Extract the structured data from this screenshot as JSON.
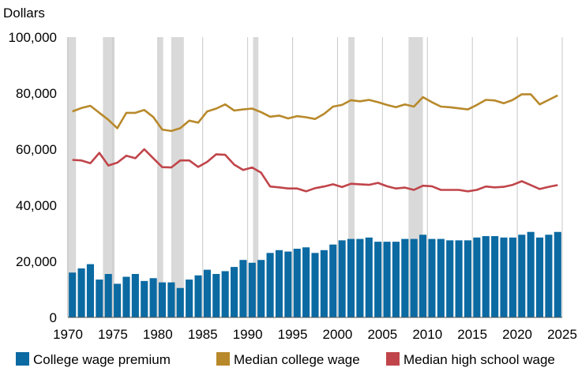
{
  "chart_data": {
    "type": "bar",
    "title": "",
    "unit_label": "Dollars",
    "xlabel": "",
    "ylabel": "",
    "xlim": [
      1970,
      2025
    ],
    "ylim": [
      0,
      100000
    ],
    "x_ticks": [
      1970,
      1975,
      1980,
      1985,
      1990,
      1995,
      2000,
      2005,
      2010,
      2015,
      2020,
      2025
    ],
    "y_ticks": [
      {
        "value": 0,
        "label": "0"
      },
      {
        "value": 20000,
        "label": "20,000"
      },
      {
        "value": 40000,
        "label": "40,000"
      },
      {
        "value": 60000,
        "label": "60,000"
      },
      {
        "value": 80000,
        "label": "80,000"
      },
      {
        "value": 100000,
        "label": "100,000"
      }
    ],
    "grid": {
      "vertical": true,
      "horizontal": false
    },
    "legend_position": "bottom",
    "recessions": [
      [
        1969.9,
        1970.9
      ],
      [
        1973.9,
        1975.2
      ],
      [
        1980.0,
        1980.6
      ],
      [
        1981.5,
        1982.9
      ],
      [
        1990.6,
        1991.2
      ],
      [
        2001.2,
        2001.9
      ],
      [
        2007.9,
        2009.5
      ]
    ],
    "x": [
      1970,
      1971,
      1972,
      1973,
      1974,
      1975,
      1976,
      1977,
      1978,
      1979,
      1980,
      1981,
      1982,
      1983,
      1984,
      1985,
      1986,
      1987,
      1988,
      1989,
      1990,
      1991,
      1992,
      1993,
      1994,
      1995,
      1996,
      1997,
      1998,
      1999,
      2000,
      2001,
      2002,
      2003,
      2004,
      2005,
      2006,
      2007,
      2008,
      2009,
      2010,
      2011,
      2012,
      2013,
      2014,
      2015,
      2016,
      2017,
      2018,
      2019,
      2020,
      2021,
      2022,
      2023,
      2024
    ],
    "series": [
      {
        "name": "College wage premium",
        "type": "bar",
        "color": "#0b6aa2",
        "values": [
          16000,
          17500,
          19000,
          13500,
          15500,
          12000,
          14500,
          15500,
          13000,
          14000,
          12500,
          12500,
          10500,
          13500,
          15000,
          17000,
          15500,
          16500,
          18000,
          20500,
          19500,
          20500,
          23000,
          24000,
          23500,
          24500,
          25000,
          23000,
          24000,
          26000,
          27500,
          28000,
          28000,
          28500,
          27000,
          27000,
          27000,
          28000,
          28000,
          29500,
          28000,
          28000,
          27500,
          27500,
          27500,
          28500,
          29000,
          29000,
          28500,
          28500,
          29500,
          30500,
          28500,
          29500,
          30500
        ]
      },
      {
        "name": "Median college wage",
        "type": "line",
        "color": "#b8892b",
        "values": [
          73500,
          74700,
          75500,
          73000,
          70500,
          67500,
          73000,
          73000,
          74000,
          71500,
          67000,
          66500,
          67500,
          70200,
          69500,
          73500,
          74500,
          76000,
          73800,
          74200,
          74500,
          73200,
          71600,
          72000,
          71000,
          71800,
          71400,
          70800,
          72600,
          75200,
          75800,
          77500,
          77100,
          77600,
          76800,
          75800,
          75000,
          76000,
          75200,
          78600,
          76800,
          75200,
          75000,
          74600,
          74200,
          75800,
          77600,
          77400,
          76400,
          77600,
          79600,
          79600,
          76000,
          77600,
          79200
        ]
      },
      {
        "name": "Median high school wage",
        "type": "line",
        "color": "#c0454a",
        "values": [
          56200,
          56000,
          55000,
          58700,
          54200,
          55200,
          57700,
          56800,
          60000,
          56800,
          53600,
          53500,
          56000,
          56000,
          53700,
          55500,
          58200,
          58000,
          54500,
          52600,
          53500,
          51600,
          46700,
          46400,
          46000,
          46000,
          45000,
          46100,
          46700,
          47500,
          46500,
          47700,
          47500,
          47300,
          48000,
          46800,
          46000,
          46300,
          45500,
          47000,
          46800,
          45500,
          45500,
          45500,
          45000,
          45500,
          46700,
          46400,
          46600,
          47300,
          48600,
          47200,
          45800,
          46600,
          47200
        ]
      }
    ]
  }
}
